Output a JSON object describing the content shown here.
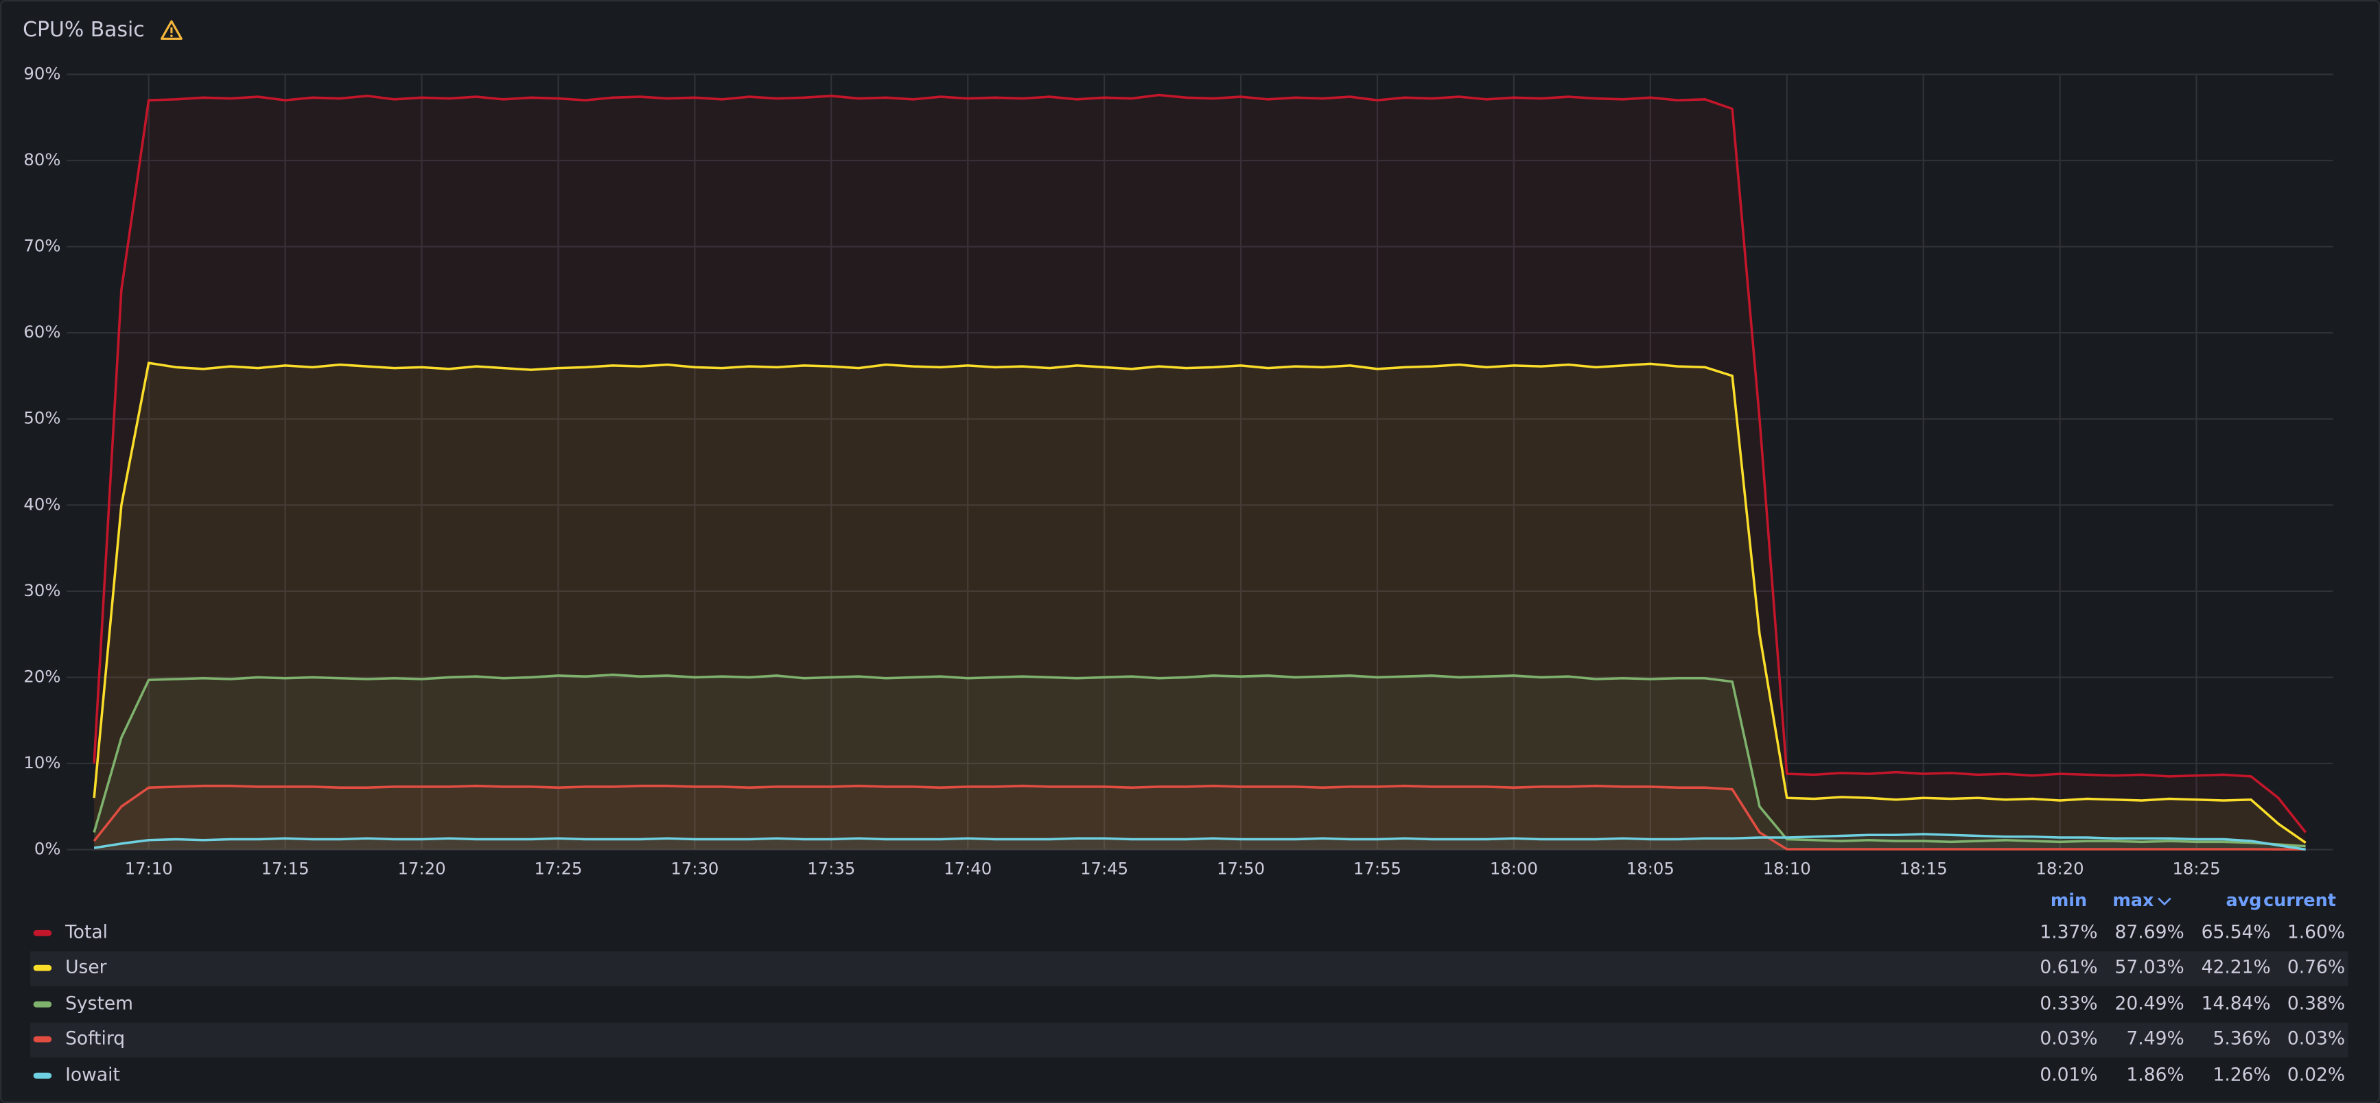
{
  "chart_data": {
    "type": "line",
    "title": "CPU% Basic",
    "x": [
      "17:08",
      "17:09",
      "17:10",
      "17:11",
      "17:12",
      "17:13",
      "17:14",
      "17:15",
      "17:16",
      "17:17",
      "17:18",
      "17:19",
      "17:20",
      "17:21",
      "17:22",
      "17:23",
      "17:24",
      "17:25",
      "17:26",
      "17:27",
      "17:28",
      "17:29",
      "17:30",
      "17:31",
      "17:32",
      "17:33",
      "17:34",
      "17:35",
      "17:36",
      "17:37",
      "17:38",
      "17:39",
      "17:40",
      "17:41",
      "17:42",
      "17:43",
      "17:44",
      "17:45",
      "17:46",
      "17:47",
      "17:48",
      "17:49",
      "17:50",
      "17:51",
      "17:52",
      "17:53",
      "17:54",
      "17:55",
      "17:56",
      "17:57",
      "17:58",
      "17:59",
      "18:00",
      "18:01",
      "18:02",
      "18:03",
      "18:04",
      "18:05",
      "18:06",
      "18:07",
      "18:08",
      "18:09",
      "18:10",
      "18:11",
      "18:12",
      "18:13",
      "18:14",
      "18:15",
      "18:16",
      "18:17",
      "18:18",
      "18:19",
      "18:20",
      "18:21",
      "18:22",
      "18:23",
      "18:24",
      "18:25",
      "18:26",
      "18:27",
      "18:28",
      "18:29"
    ],
    "xlim": [
      "17:07",
      "18:30"
    ],
    "xticks": [
      "17:10",
      "17:15",
      "17:20",
      "17:25",
      "17:30",
      "17:35",
      "17:40",
      "17:45",
      "17:50",
      "17:55",
      "18:00",
      "18:05",
      "18:10",
      "18:15",
      "18:20",
      "18:25"
    ],
    "ylim": [
      0,
      90
    ],
    "yticks": [
      {
        "value": 0,
        "label": "0%"
      },
      {
        "value": 10,
        "label": "10%"
      },
      {
        "value": 20,
        "label": "20%"
      },
      {
        "value": 30,
        "label": "30%"
      },
      {
        "value": 40,
        "label": "40%"
      },
      {
        "value": 50,
        "label": "50%"
      },
      {
        "value": 60,
        "label": "60%"
      },
      {
        "value": 70,
        "label": "70%"
      },
      {
        "value": 80,
        "label": "80%"
      },
      {
        "value": 90,
        "label": "90%"
      }
    ],
    "grid": true,
    "legend_columns": [
      "min",
      "max",
      "avg",
      "current"
    ],
    "series": [
      {
        "name": "Total",
        "color": "#c4162a",
        "legend_values": [
          "1.37%",
          "87.69%",
          "65.54%",
          "1.60%"
        ],
        "values": [
          10,
          65,
          87,
          87.1,
          87.3,
          87.2,
          87.4,
          87.0,
          87.3,
          87.2,
          87.5,
          87.1,
          87.3,
          87.2,
          87.4,
          87.1,
          87.3,
          87.2,
          87.0,
          87.3,
          87.4,
          87.2,
          87.3,
          87.1,
          87.4,
          87.2,
          87.3,
          87.5,
          87.2,
          87.3,
          87.1,
          87.4,
          87.2,
          87.3,
          87.2,
          87.4,
          87.1,
          87.3,
          87.2,
          87.6,
          87.3,
          87.2,
          87.4,
          87.1,
          87.3,
          87.2,
          87.4,
          87.0,
          87.3,
          87.2,
          87.4,
          87.1,
          87.3,
          87.2,
          87.4,
          87.2,
          87.1,
          87.3,
          87.0,
          87.1,
          86,
          50,
          8.8,
          8.7,
          8.9,
          8.8,
          9.0,
          8.8,
          8.9,
          8.7,
          8.8,
          8.6,
          8.8,
          8.7,
          8.6,
          8.7,
          8.5,
          8.6,
          8.7,
          8.5,
          6,
          2
        ]
      },
      {
        "name": "User",
        "color": "#fade2a",
        "legend_values": [
          "0.61%",
          "57.03%",
          "42.21%",
          "0.76%"
        ],
        "values": [
          6,
          40,
          56.5,
          56.0,
          55.8,
          56.1,
          55.9,
          56.2,
          56.0,
          56.3,
          56.1,
          55.9,
          56.0,
          55.8,
          56.1,
          55.9,
          55.7,
          55.9,
          56.0,
          56.2,
          56.1,
          56.3,
          56.0,
          55.9,
          56.1,
          56.0,
          56.2,
          56.1,
          55.9,
          56.3,
          56.1,
          56.0,
          56.2,
          56.0,
          56.1,
          55.9,
          56.2,
          56.0,
          55.8,
          56.1,
          55.9,
          56.0,
          56.2,
          55.9,
          56.1,
          56.0,
          56.2,
          55.8,
          56.0,
          56.1,
          56.3,
          56.0,
          56.2,
          56.1,
          56.3,
          56.0,
          56.2,
          56.4,
          56.1,
          56.0,
          55,
          25,
          6.0,
          5.9,
          6.1,
          6.0,
          5.8,
          6.0,
          5.9,
          6.0,
          5.8,
          5.9,
          5.7,
          5.9,
          5.8,
          5.7,
          5.9,
          5.8,
          5.7,
          5.8,
          3,
          0.8
        ]
      },
      {
        "name": "System",
        "color": "#7eb26d",
        "legend_values": [
          "0.33%",
          "20.49%",
          "14.84%",
          "0.38%"
        ],
        "values": [
          2,
          13,
          19.7,
          19.8,
          19.9,
          19.8,
          20.0,
          19.9,
          20.0,
          19.9,
          19.8,
          19.9,
          19.8,
          20.0,
          20.1,
          19.9,
          20.0,
          20.2,
          20.1,
          20.3,
          20.1,
          20.2,
          20.0,
          20.1,
          20.0,
          20.2,
          19.9,
          20.0,
          20.1,
          19.9,
          20.0,
          20.1,
          19.9,
          20.0,
          20.1,
          20.0,
          19.9,
          20.0,
          20.1,
          19.9,
          20.0,
          20.2,
          20.1,
          20.2,
          20.0,
          20.1,
          20.2,
          20.0,
          20.1,
          20.2,
          20.0,
          20.1,
          20.2,
          20.0,
          20.1,
          19.8,
          19.9,
          19.8,
          19.9,
          19.9,
          19.5,
          5,
          1.2,
          1.1,
          1.0,
          1.1,
          1.0,
          1.0,
          0.9,
          1.0,
          1.1,
          1.0,
          0.9,
          1.0,
          1.0,
          0.9,
          1.0,
          0.9,
          0.9,
          0.8,
          0.6,
          0.4
        ]
      },
      {
        "name": "Softirq",
        "color": "#e24d42",
        "legend_values": [
          "0.03%",
          "7.49%",
          "5.36%",
          "0.03%"
        ],
        "values": [
          1,
          5,
          7.2,
          7.3,
          7.4,
          7.4,
          7.3,
          7.3,
          7.3,
          7.2,
          7.2,
          7.3,
          7.3,
          7.3,
          7.4,
          7.3,
          7.3,
          7.2,
          7.3,
          7.3,
          7.4,
          7.4,
          7.3,
          7.3,
          7.2,
          7.3,
          7.3,
          7.3,
          7.4,
          7.3,
          7.3,
          7.2,
          7.3,
          7.3,
          7.4,
          7.3,
          7.3,
          7.3,
          7.2,
          7.3,
          7.3,
          7.4,
          7.3,
          7.3,
          7.3,
          7.2,
          7.3,
          7.3,
          7.4,
          7.3,
          7.3,
          7.3,
          7.2,
          7.3,
          7.3,
          7.4,
          7.3,
          7.3,
          7.2,
          7.2,
          7.0,
          2,
          0.05,
          0.05,
          0.05,
          0.05,
          0.05,
          0.05,
          0.05,
          0.05,
          0.05,
          0.05,
          0.05,
          0.05,
          0.05,
          0.05,
          0.05,
          0.05,
          0.05,
          0.05,
          0.03,
          0.03
        ]
      },
      {
        "name": "Iowait",
        "color": "#6ed0e0",
        "legend_values": [
          "0.01%",
          "1.86%",
          "1.26%",
          "0.02%"
        ],
        "values": [
          0.2,
          0.7,
          1.1,
          1.2,
          1.1,
          1.2,
          1.2,
          1.3,
          1.2,
          1.2,
          1.3,
          1.2,
          1.2,
          1.3,
          1.2,
          1.2,
          1.2,
          1.3,
          1.2,
          1.2,
          1.2,
          1.3,
          1.2,
          1.2,
          1.2,
          1.3,
          1.2,
          1.2,
          1.3,
          1.2,
          1.2,
          1.2,
          1.3,
          1.2,
          1.2,
          1.2,
          1.3,
          1.3,
          1.2,
          1.2,
          1.2,
          1.3,
          1.2,
          1.2,
          1.2,
          1.3,
          1.2,
          1.2,
          1.3,
          1.2,
          1.2,
          1.2,
          1.3,
          1.2,
          1.2,
          1.2,
          1.3,
          1.2,
          1.2,
          1.3,
          1.3,
          1.4,
          1.4,
          1.5,
          1.6,
          1.7,
          1.7,
          1.8,
          1.7,
          1.6,
          1.5,
          1.5,
          1.4,
          1.4,
          1.3,
          1.3,
          1.3,
          1.2,
          1.2,
          1.0,
          0.5,
          0.02
        ]
      }
    ]
  }
}
